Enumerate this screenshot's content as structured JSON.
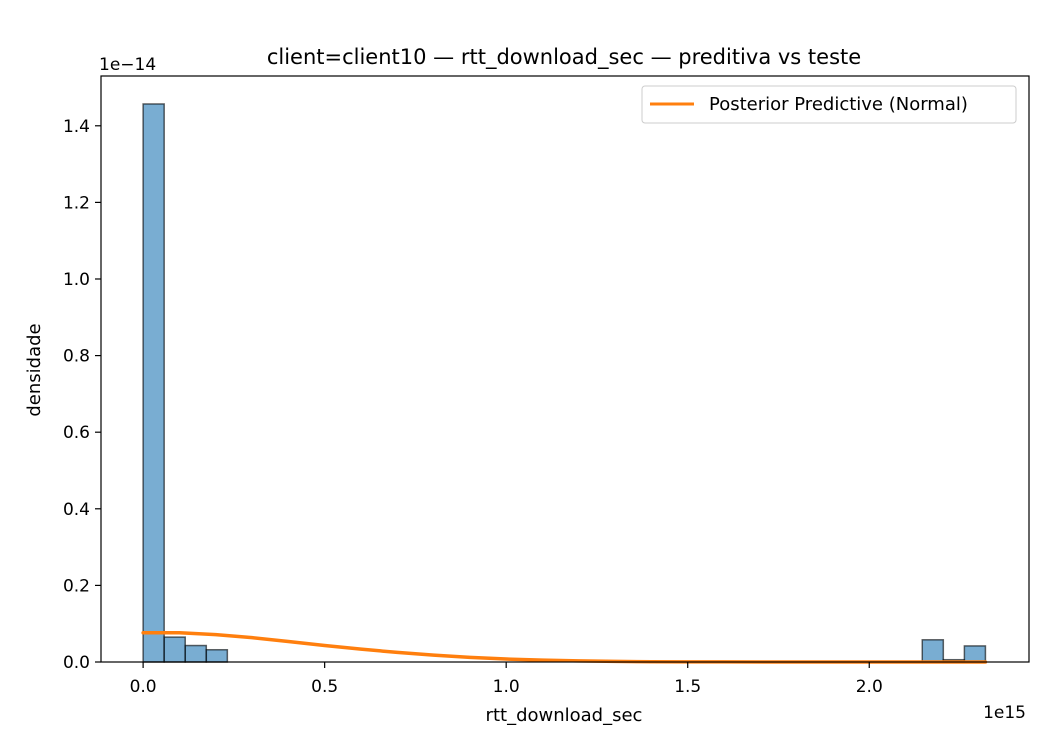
{
  "chart_data": {
    "type": "bar",
    "title": "client=client10 — rtt_download_sec — preditiva vs teste",
    "xlabel": "rtt_download_sec",
    "ylabel": "densidade",
    "x_offset_label": "1e15",
    "y_offset_label": "1e−14",
    "xlim": [
      -0.116,
      2.44
    ],
    "ylim": [
      0,
      1.53
    ],
    "x_ticks": [
      0.0,
      0.5,
      1.0,
      1.5,
      2.0
    ],
    "x_tick_labels": [
      "0.0",
      "0.5",
      "1.0",
      "1.5",
      "2.0"
    ],
    "y_ticks": [
      0.0,
      0.2,
      0.4,
      0.6,
      0.8,
      1.0,
      1.2,
      1.4
    ],
    "y_tick_labels": [
      "0.0",
      "0.2",
      "0.4",
      "0.6",
      "0.8",
      "1.0",
      "1.2",
      "1.4"
    ],
    "histogram": {
      "color": "#1f77b4",
      "bins": [
        {
          "x0": 0.0,
          "x1": 0.058,
          "value": 1.457
        },
        {
          "x0": 0.058,
          "x1": 0.116,
          "value": 0.065
        },
        {
          "x0": 0.116,
          "x1": 0.174,
          "value": 0.043
        },
        {
          "x0": 0.174,
          "x1": 0.232,
          "value": 0.032
        },
        {
          "x0": 2.146,
          "x1": 2.204,
          "value": 0.058
        },
        {
          "x0": 2.204,
          "x1": 2.262,
          "value": 0.006
        },
        {
          "x0": 2.262,
          "x1": 2.32,
          "value": 0.042
        }
      ]
    },
    "series": [
      {
        "name": "Posterior Predictive (Normal)",
        "color": "#ff7f0e",
        "x": [
          0.0,
          0.1,
          0.2,
          0.3,
          0.4,
          0.5,
          0.6,
          0.7,
          0.8,
          0.9,
          1.0,
          1.1,
          1.2,
          1.3,
          1.4,
          1.5,
          1.6,
          1.8,
          2.0,
          2.2,
          2.32
        ],
        "y": [
          0.0765,
          0.0765,
          0.0715,
          0.0635,
          0.0535,
          0.043,
          0.0335,
          0.025,
          0.0178,
          0.012,
          0.0078,
          0.0048,
          0.0028,
          0.0015,
          0.0008,
          0.0004,
          0.0002,
          4e-05,
          1e-05,
          0.0,
          0.0
        ]
      }
    ],
    "legend_position": "top-right"
  }
}
